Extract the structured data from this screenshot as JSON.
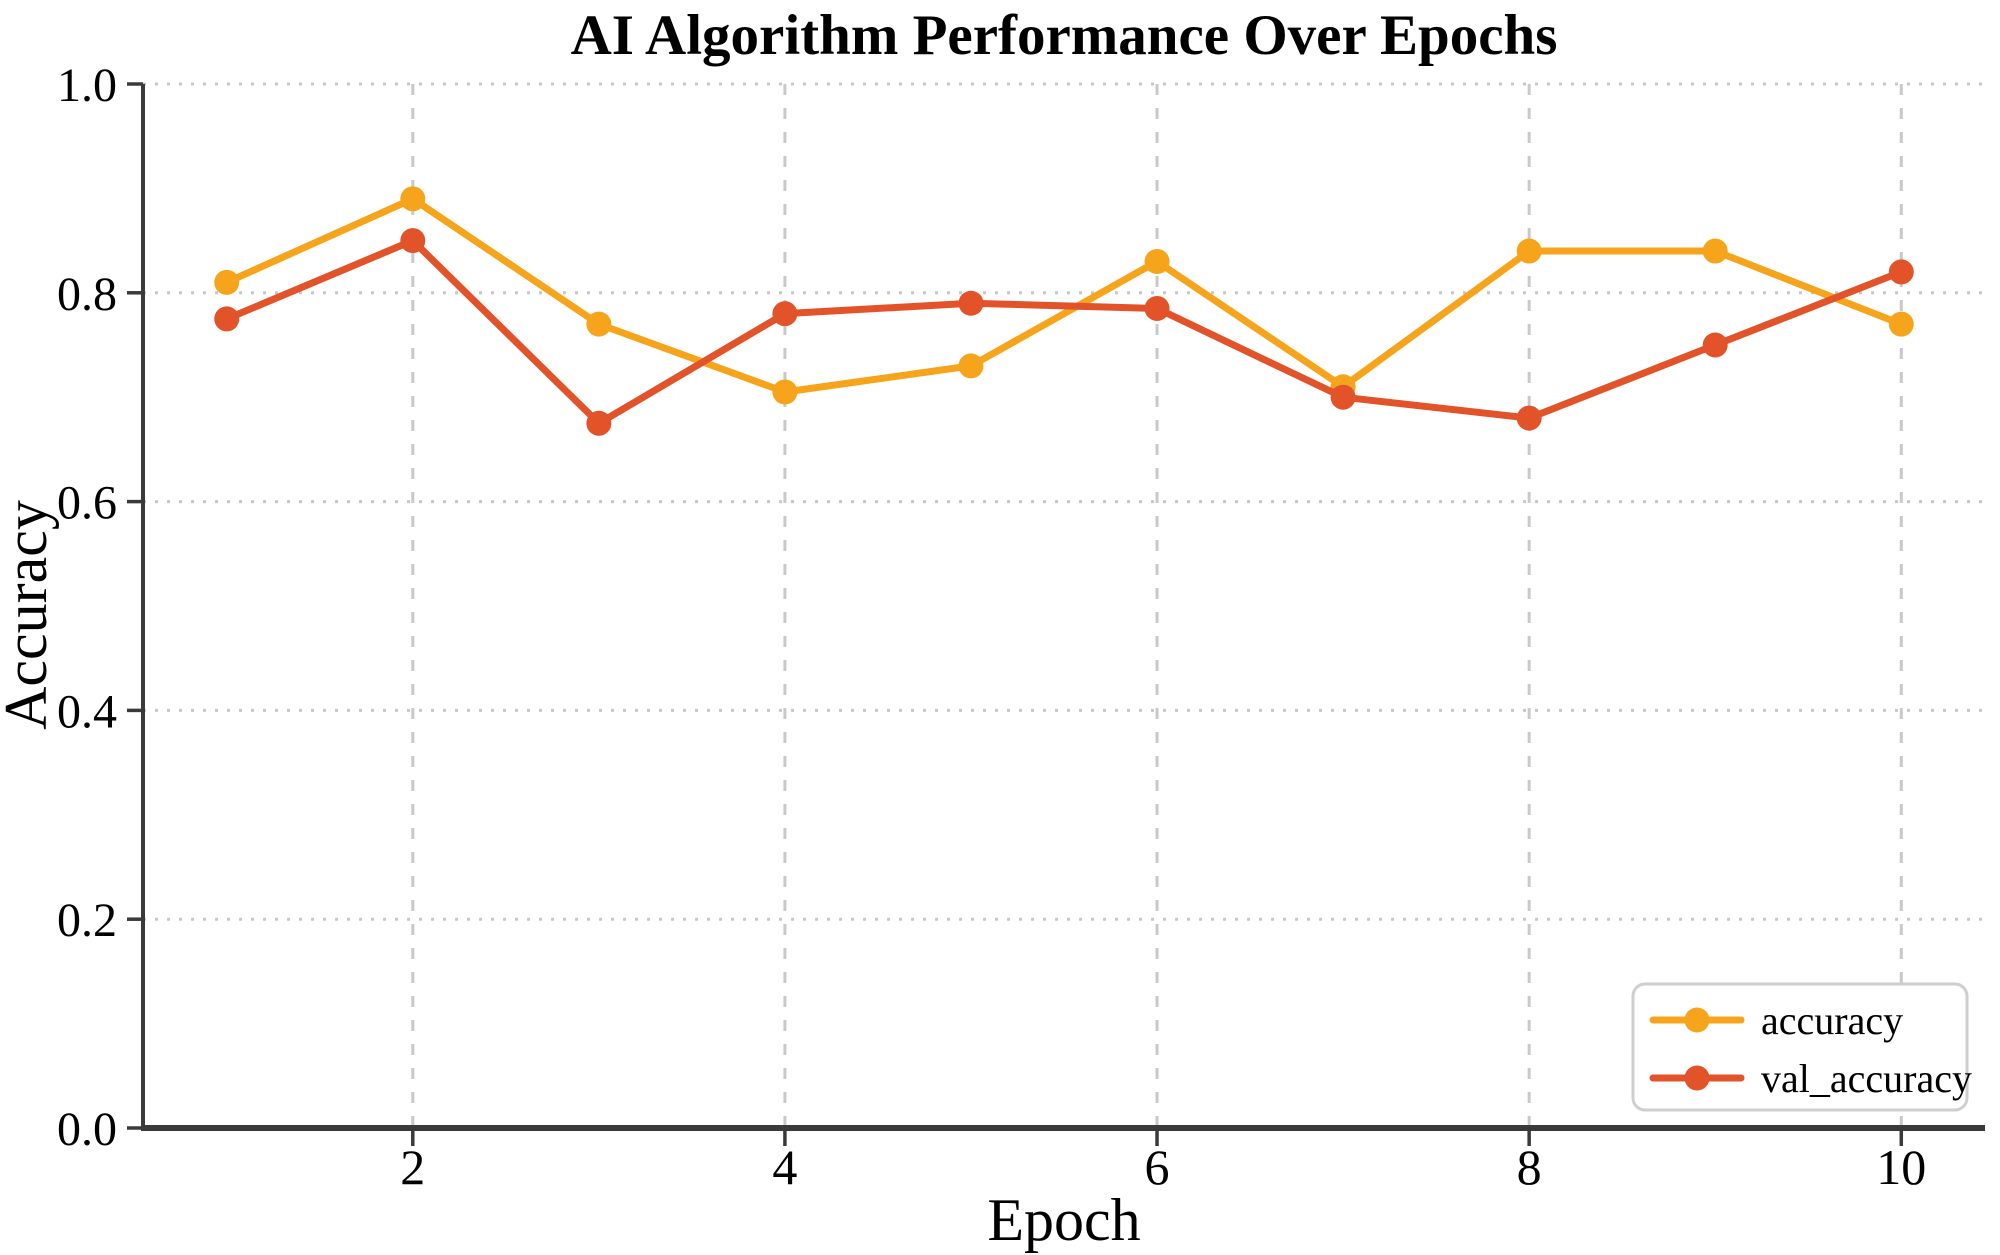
{
  "chart_data": {
    "type": "line",
    "title": "AI Algorithm Performance Over Epochs",
    "xlabel": "Epoch",
    "ylabel": "Accuracy",
    "x": [
      1,
      2,
      3,
      4,
      5,
      6,
      7,
      8,
      9,
      10
    ],
    "series": [
      {
        "name": "accuracy",
        "color": "#F5A41C",
        "values": [
          0.81,
          0.89,
          0.77,
          0.705,
          0.73,
          0.83,
          0.71,
          0.84,
          0.84,
          0.77
        ]
      },
      {
        "name": "val_accuracy",
        "color": "#E2532A",
        "values": [
          0.775,
          0.85,
          0.675,
          0.78,
          0.79,
          0.785,
          0.7,
          0.68,
          0.75,
          0.82
        ]
      }
    ],
    "xlim": [
      0.55,
      10.45
    ],
    "ylim": [
      0.0,
      1.0
    ],
    "xticks": [
      2,
      4,
      6,
      8,
      10
    ],
    "xtick_labels": [
      "2",
      "4",
      "6",
      "8",
      "10"
    ],
    "yticks": [
      0.0,
      0.2,
      0.4,
      0.6,
      0.8,
      1.0
    ],
    "ytick_labels": [
      "0.0",
      "0.2",
      "0.4",
      "0.6",
      "0.8",
      "1.0"
    ],
    "grid": "dotted horizontal at yticks, dashed vertical at xticks",
    "legend": {
      "position": "lower right",
      "entries": [
        "accuracy",
        "val_accuracy"
      ]
    }
  }
}
